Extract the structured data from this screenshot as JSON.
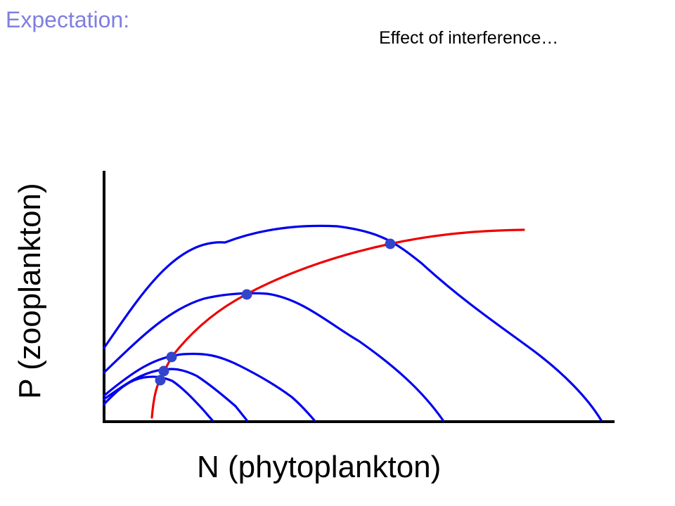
{
  "header": {
    "expectation": "Expectation:",
    "subtitle": "Effect of interference…"
  },
  "axes": {
    "xlabel": "N (phytoplankton)",
    "ylabel": "P (zooplankton)"
  },
  "colors": {
    "text_accent": "#7f7fe0",
    "prey_curves": "#0000ee",
    "predator_curve": "#ee0000",
    "equilibrium_dots": "#3344cc",
    "axis": "#000000"
  },
  "diagram": {
    "prey_isocline_count": 5,
    "predator_isocline_count": 1,
    "equilibrium_point_count": 5
  }
}
